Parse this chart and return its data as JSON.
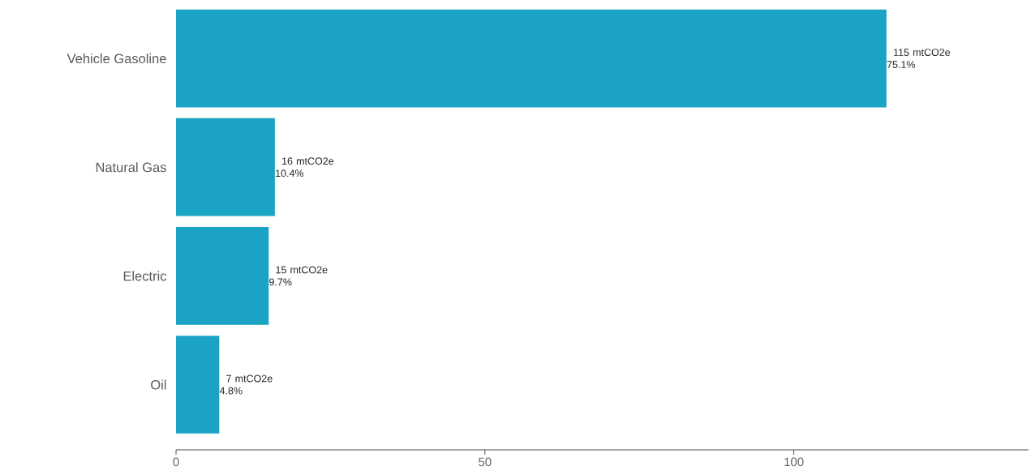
{
  "chart_data": {
    "type": "bar",
    "orientation": "horizontal",
    "categories": [
      "Vehicle Gasoline",
      "Natural Gas",
      "Electric",
      "Oil"
    ],
    "values": [
      115,
      16,
      15,
      7
    ],
    "value_labels": [
      "115 mtCO2e 75.1%",
      "16 mtCO2e 10.4%",
      "15 mtCO2e 9.7%",
      "7 mtCO2e 4.8%"
    ],
    "color": "#1ba3c6",
    "xlim": [
      0,
      138
    ],
    "xticks": [
      0,
      50,
      100
    ]
  }
}
